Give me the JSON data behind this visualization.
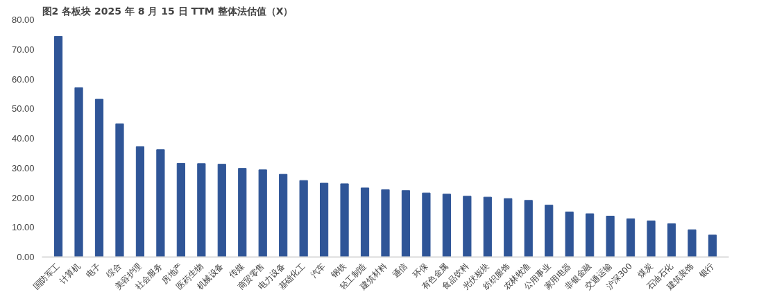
{
  "chart_data": {
    "type": "bar",
    "title": "图2  各板块 2025 年 8 月 15 日 TTM 整体法估值（X）",
    "categories": [
      "国防军工",
      "计算机",
      "电子",
      "综合",
      "美容护理",
      "社会服务",
      "房地产",
      "医药生物",
      "机械设备",
      "传媒",
      "商贸零售",
      "电力设备",
      "基础化工",
      "汽车",
      "钢铁",
      "轻工制造",
      "建筑材料",
      "通信",
      "环保",
      "有色金属",
      "食品饮料",
      "光伏板块",
      "纺织服饰",
      "农林牧渔",
      "公用事业",
      "家用电器",
      "非银金融",
      "交通运输",
      "沪深300",
      "煤炭",
      "石油石化",
      "建筑装饰",
      "银行"
    ],
    "values": [
      74.4,
      57.1,
      53.2,
      44.9,
      37.2,
      36.2,
      31.6,
      31.5,
      31.3,
      29.9,
      29.4,
      27.9,
      25.8,
      24.9,
      24.7,
      23.3,
      22.7,
      22.4,
      21.6,
      21.2,
      20.5,
      20.2,
      19.7,
      19.1,
      17.5,
      15.2,
      14.6,
      13.8,
      12.9,
      12.2,
      11.2,
      9.2,
      7.4
    ],
    "color": "#2f5597",
    "ylim": [
      0,
      80
    ],
    "yticks": [
      {
        "value": 0,
        "label": "0.00"
      },
      {
        "value": 10,
        "label": "10.00"
      },
      {
        "value": 20,
        "label": "20.00"
      },
      {
        "value": 30,
        "label": "30.00"
      },
      {
        "value": 40,
        "label": "40.00"
      },
      {
        "value": 50,
        "label": "50.00"
      },
      {
        "value": 60,
        "label": "60.00"
      },
      {
        "value": 70,
        "label": "70.00"
      },
      {
        "value": 80,
        "label": "80.00"
      }
    ],
    "grid": false
  }
}
